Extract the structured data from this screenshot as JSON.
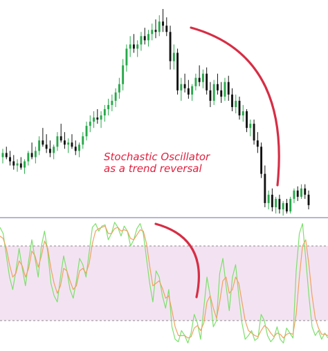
{
  "annotation": {
    "line1": "Stochastic Oscillator",
    "line2": "as a trend reversal",
    "color": "#e0213f"
  },
  "colors": {
    "bull": "#27a84a",
    "bear": "#111111",
    "stoch_k": "#7be06a",
    "stoch_d": "#f0a060",
    "band_fill": "#f3e3f2",
    "divider": "#6a6aa8",
    "band_line": "#8a8a8a",
    "arc": "#d62e45"
  },
  "chart_data": [
    {
      "type": "candlestick",
      "title": "",
      "xlabel": "",
      "ylabel": "",
      "ylim": [
        0,
        100
      ],
      "grid": false,
      "note": "no axis values printed; prices are relative levels 0-100",
      "candles": [
        [
          28,
          32,
          25,
          30
        ],
        [
          30,
          33,
          27,
          28
        ],
        [
          28,
          31,
          24,
          26
        ],
        [
          26,
          29,
          22,
          24
        ],
        [
          24,
          27,
          21,
          25
        ],
        [
          25,
          28,
          22,
          23
        ],
        [
          23,
          27,
          20,
          26
        ],
        [
          26,
          31,
          24,
          30
        ],
        [
          30,
          35,
          27,
          28
        ],
        [
          28,
          33,
          25,
          31
        ],
        [
          31,
          38,
          29,
          36
        ],
        [
          36,
          42,
          33,
          34
        ],
        [
          34,
          39,
          30,
          32
        ],
        [
          32,
          36,
          28,
          30
        ],
        [
          30,
          34,
          27,
          33
        ],
        [
          33,
          40,
          31,
          38
        ],
        [
          38,
          44,
          35,
          36
        ],
        [
          36,
          40,
          32,
          34
        ],
        [
          34,
          37,
          30,
          35
        ],
        [
          35,
          39,
          32,
          33
        ],
        [
          33,
          36,
          29,
          31
        ],
        [
          31,
          35,
          28,
          34
        ],
        [
          34,
          40,
          32,
          38
        ],
        [
          38,
          45,
          36,
          43
        ],
        [
          43,
          48,
          40,
          45
        ],
        [
          45,
          50,
          42,
          47
        ],
        [
          47,
          51,
          44,
          46
        ],
        [
          46,
          50,
          42,
          48
        ],
        [
          48,
          53,
          45,
          51
        ],
        [
          51,
          56,
          48,
          53
        ],
        [
          53,
          58,
          50,
          55
        ],
        [
          55,
          61,
          52,
          59
        ],
        [
          59,
          66,
          56,
          63
        ],
        [
          63,
          75,
          60,
          72
        ],
        [
          72,
          82,
          69,
          80
        ],
        [
          80,
          86,
          76,
          82
        ],
        [
          82,
          87,
          78,
          80
        ],
        [
          80,
          84,
          76,
          82
        ],
        [
          82,
          88,
          79,
          86
        ],
        [
          86,
          90,
          82,
          84
        ],
        [
          84,
          89,
          81,
          87
        ],
        [
          87,
          92,
          84,
          89
        ],
        [
          89,
          94,
          85,
          88
        ],
        [
          88,
          96,
          86,
          93
        ],
        [
          93,
          99,
          88,
          91
        ],
        [
          91,
          95,
          86,
          88
        ],
        [
          88,
          91,
          70,
          74
        ],
        [
          74,
          82,
          70,
          78
        ],
        [
          78,
          80,
          58,
          60
        ],
        [
          60,
          66,
          55,
          63
        ],
        [
          63,
          68,
          59,
          61
        ],
        [
          61,
          65,
          56,
          58
        ],
        [
          58,
          63,
          55,
          62
        ],
        [
          62,
          68,
          60,
          66
        ],
        [
          66,
          72,
          62,
          64
        ],
        [
          64,
          70,
          61,
          68
        ],
        [
          68,
          71,
          58,
          60
        ],
        [
          60,
          64,
          52,
          55
        ],
        [
          55,
          65,
          53,
          63
        ],
        [
          63,
          68,
          58,
          60
        ],
        [
          60,
          64,
          54,
          57
        ],
        [
          57,
          66,
          55,
          64
        ],
        [
          64,
          67,
          55,
          58
        ],
        [
          58,
          61,
          50,
          52
        ],
        [
          52,
          58,
          49,
          55
        ],
        [
          55,
          57,
          46,
          48
        ],
        [
          48,
          53,
          45,
          50
        ],
        [
          50,
          51,
          40,
          42
        ],
        [
          42,
          46,
          38,
          44
        ],
        [
          44,
          46,
          34,
          36
        ],
        [
          36,
          40,
          30,
          33
        ],
        [
          33,
          35,
          18,
          20
        ],
        [
          20,
          24,
          4,
          6
        ],
        [
          6,
          12,
          3,
          10
        ],
        [
          10,
          13,
          2,
          4
        ],
        [
          4,
          9,
          1,
          8
        ],
        [
          8,
          10,
          1,
          3
        ],
        [
          3,
          7,
          0,
          6
        ],
        [
          6,
          8,
          1,
          2
        ],
        [
          2,
          9,
          1,
          8
        ],
        [
          8,
          13,
          6,
          12
        ],
        [
          12,
          14,
          7,
          9
        ],
        [
          9,
          15,
          8,
          13
        ],
        [
          13,
          15,
          8,
          10
        ],
        [
          10,
          12,
          3,
          5
        ]
      ]
    },
    {
      "type": "line",
      "title": "",
      "xlabel": "",
      "ylabel": "",
      "ylim": [
        0,
        100
      ],
      "grid": false,
      "bands": [
        20,
        80
      ],
      "series": [
        {
          "values": [
            95,
            90,
            72,
            55,
            45,
            60,
            78,
            62,
            48,
            68,
            85,
            70,
            55,
            80,
            92,
            75,
            50,
            40,
            35,
            55,
            72,
            60,
            45,
            38,
            52,
            70,
            65,
            55,
            75,
            95,
            98,
            92,
            96,
            97,
            85,
            90,
            99,
            95,
            88,
            96,
            92,
            80,
            85,
            94,
            98,
            90,
            70,
            50,
            35,
            60,
            55,
            40,
            30,
            45,
            15,
            5,
            3,
            12,
            8,
            2,
            10,
            25,
            18,
            5,
            30,
            55,
            40,
            15,
            20,
            58,
            70,
            48,
            28,
            55,
            65,
            40,
            18,
            5,
            8,
            12,
            4,
            6,
            25,
            20,
            8,
            3,
            6,
            15,
            5,
            2,
            14,
            10,
            6,
            60,
            90,
            98,
            70,
            40,
            15,
            8,
            12,
            5,
            10,
            6
          ]
        },
        {
          "values": [
            88,
            86,
            78,
            65,
            55,
            58,
            68,
            64,
            55,
            62,
            76,
            72,
            63,
            72,
            84,
            78,
            62,
            50,
            42,
            48,
            62,
            60,
            52,
            45,
            48,
            60,
            62,
            58,
            66,
            82,
            92,
            94,
            95,
            96,
            90,
            90,
            94,
            95,
            92,
            93,
            92,
            86,
            85,
            89,
            93,
            92,
            82,
            64,
            48,
            50,
            52,
            46,
            38,
            40,
            28,
            15,
            8,
            8,
            8,
            6,
            7,
            14,
            16,
            12,
            18,
            35,
            40,
            30,
            22,
            35,
            52,
            55,
            42,
            45,
            55,
            50,
            35,
            20,
            12,
            10,
            8,
            7,
            12,
            16,
            14,
            10,
            7,
            10,
            9,
            6,
            9,
            10,
            9,
            25,
            55,
            80,
            85,
            65,
            40,
            22,
            14,
            9,
            9,
            8
          ]
        }
      ]
    }
  ]
}
